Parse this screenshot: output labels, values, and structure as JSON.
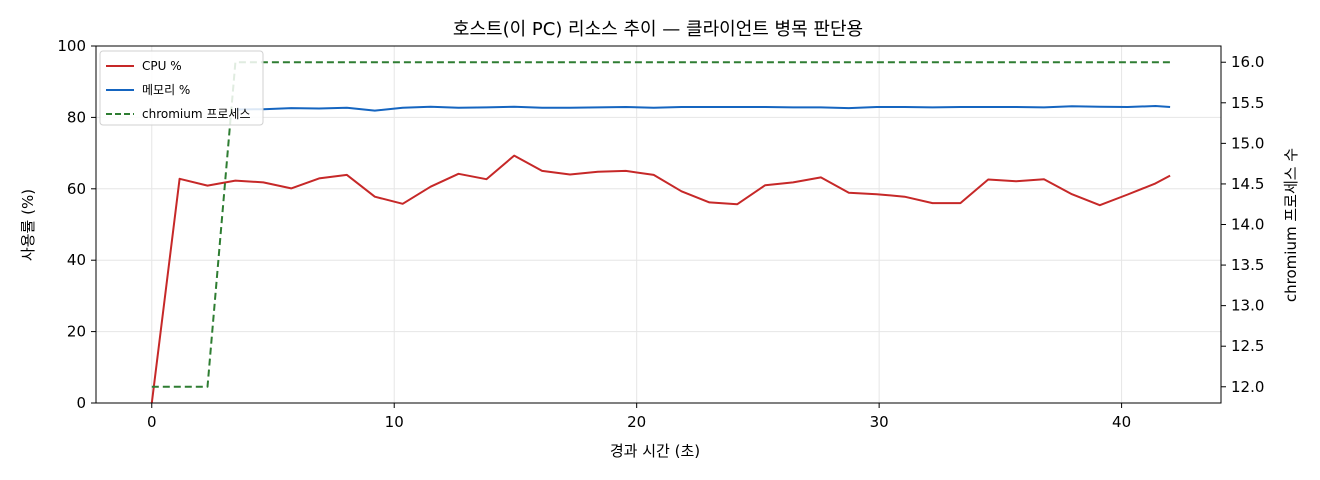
{
  "chart_data": {
    "type": "line",
    "title": "호스트(이 PC) 리소스 추이 — 클라이언트 병목 판단용",
    "xlabel": "경과 시간 (초)",
    "ylabel": "사용률 (%)",
    "ylabel_right": "chromium 프로세스 수",
    "xlim": [
      -2.3,
      44.1
    ],
    "ylim": [
      0,
      100
    ],
    "ylim_right": [
      11.8,
      16.2
    ],
    "x_ticks": [
      0,
      10,
      20,
      30,
      40
    ],
    "y_ticks": [
      0,
      20,
      40,
      60,
      80,
      100
    ],
    "y_ticks_right": [
      12.0,
      12.5,
      13.0,
      13.5,
      14.0,
      14.5,
      15.0,
      15.5,
      16.0
    ],
    "x_tick_labels": [
      "0",
      "10",
      "20",
      "30",
      "40"
    ],
    "y_tick_labels": [
      "0",
      "20",
      "40",
      "60",
      "80",
      "100"
    ],
    "y_tick_labels_right": [
      "12.0",
      "12.5",
      "13.0",
      "13.5",
      "14.0",
      "14.5",
      "15.0",
      "15.5",
      "16.0"
    ],
    "grid": true,
    "legend_position": "top-left",
    "series": [
      {
        "name": "CPU %",
        "axis": "left",
        "color": "#c62828",
        "dash": "solid",
        "x": [
          0,
          1.15,
          2.3,
          3.45,
          4.6,
          5.75,
          6.9,
          8.05,
          9.2,
          10.35,
          11.5,
          12.65,
          13.8,
          14.95,
          16.1,
          17.25,
          18.4,
          19.55,
          20.7,
          21.85,
          23.0,
          24.15,
          25.3,
          26.45,
          27.6,
          28.75,
          29.9,
          31.05,
          32.2,
          33.35,
          34.5,
          35.65,
          36.8,
          37.95,
          39.1,
          40.25,
          41.4,
          42.0
        ],
        "values": [
          0,
          62.8,
          60.9,
          62.3,
          61.8,
          60.1,
          62.9,
          63.9,
          57.8,
          55.8,
          60.6,
          64.2,
          62.7,
          69.3,
          65.0,
          64.0,
          64.8,
          65.0,
          63.9,
          59.3,
          56.2,
          55.7,
          61.0,
          61.8,
          63.2,
          58.9,
          58.5,
          57.8,
          56.0,
          56.0,
          62.6,
          62.1,
          62.7,
          58.5,
          55.4,
          58.4,
          61.5,
          63.7
        ]
      },
      {
        "name": "메모리 %",
        "axis": "left",
        "color": "#1565c0",
        "dash": "solid",
        "x": [
          3.45,
          4.6,
          5.75,
          6.9,
          8.05,
          9.2,
          10.35,
          11.5,
          12.65,
          13.8,
          14.95,
          16.1,
          17.25,
          18.4,
          19.55,
          20.7,
          21.85,
          23.0,
          24.15,
          25.3,
          26.45,
          27.6,
          28.75,
          29.9,
          31.05,
          32.2,
          33.35,
          34.5,
          35.65,
          36.8,
          37.95,
          39.1,
          40.25,
          41.4,
          42.0
        ],
        "values": [
          82.2,
          82.3,
          82.6,
          82.5,
          82.7,
          81.9,
          82.7,
          83.0,
          82.7,
          82.8,
          83.0,
          82.7,
          82.7,
          82.8,
          82.9,
          82.7,
          82.9,
          82.9,
          82.9,
          82.9,
          82.8,
          82.8,
          82.6,
          82.9,
          82.9,
          82.8,
          82.9,
          82.9,
          82.9,
          82.8,
          83.1,
          83.0,
          82.9,
          83.2,
          82.9
        ]
      },
      {
        "name": "chromium 프로세스",
        "axis": "right",
        "color": "#2e7d32",
        "dash": "dashed",
        "x": [
          0,
          1.15,
          2.3,
          3.45,
          4.6,
          42.0
        ],
        "values": [
          12,
          12,
          12,
          16,
          16,
          16
        ]
      }
    ]
  }
}
